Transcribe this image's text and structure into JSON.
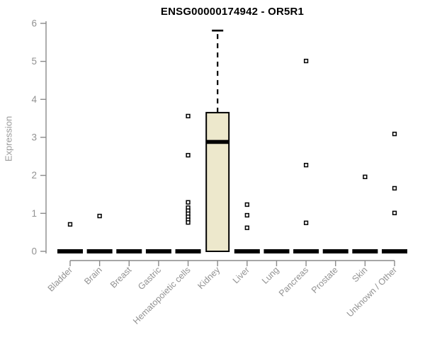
{
  "chart_data": {
    "type": "box",
    "title": "ENSG00000174942 - OR5R1",
    "ylabel": "Expression",
    "xlabel": "",
    "ylim": [
      0,
      6
    ],
    "yticks": [
      0,
      1,
      2,
      3,
      4,
      5,
      6
    ],
    "grid": false,
    "legend": "none",
    "categories": [
      "Bladder",
      "Brain",
      "Breast",
      "Gastric",
      "Hematopoietic cells",
      "Kidney",
      "Liver",
      "Lung",
      "Pancreas",
      "Prostate",
      "Skin",
      "Unknown / Other"
    ],
    "boxes": [
      {
        "category": "Bladder",
        "median": 0,
        "q1": 0,
        "q3": 0,
        "whisker_low": 0,
        "whisker_high": 0,
        "outliers": [
          0.71
        ]
      },
      {
        "category": "Brain",
        "median": 0,
        "q1": 0,
        "q3": 0,
        "whisker_low": 0,
        "whisker_high": 0,
        "outliers": [
          0.93
        ]
      },
      {
        "category": "Breast",
        "median": 0,
        "q1": 0,
        "q3": 0,
        "whisker_low": 0,
        "whisker_high": 0,
        "outliers": []
      },
      {
        "category": "Gastric",
        "median": 0,
        "q1": 0,
        "q3": 0,
        "whisker_low": 0,
        "whisker_high": 0,
        "outliers": []
      },
      {
        "category": "Hematopoietic cells",
        "median": 0,
        "q1": 0,
        "q3": 0,
        "whisker_low": 0,
        "whisker_high": 0,
        "outliers": [
          3.56,
          2.53,
          1.29,
          1.15,
          1.07,
          0.99,
          0.91,
          0.83,
          0.76
        ]
      },
      {
        "category": "Kidney",
        "median": 2.88,
        "q1": 0,
        "q3": 3.65,
        "whisker_low": 0,
        "whisker_high": 5.81,
        "outliers": []
      },
      {
        "category": "Liver",
        "median": 0,
        "q1": 0,
        "q3": 0,
        "whisker_low": 0,
        "whisker_high": 0,
        "outliers": [
          1.23,
          0.95,
          0.62
        ]
      },
      {
        "category": "Lung",
        "median": 0,
        "q1": 0,
        "q3": 0,
        "whisker_low": 0,
        "whisker_high": 0,
        "outliers": []
      },
      {
        "category": "Pancreas",
        "median": 0,
        "q1": 0,
        "q3": 0,
        "whisker_low": 0,
        "whisker_high": 0,
        "outliers": [
          5.01,
          2.27,
          0.75
        ]
      },
      {
        "category": "Prostate",
        "median": 0,
        "q1": 0,
        "q3": 0,
        "whisker_low": 0,
        "whisker_high": 0,
        "outliers": []
      },
      {
        "category": "Skin",
        "median": 0,
        "q1": 0,
        "q3": 0,
        "whisker_low": 0,
        "whisker_high": 0,
        "outliers": [
          1.96
        ]
      },
      {
        "category": "Unknown / Other",
        "median": 0,
        "q1": 0,
        "q3": 0,
        "whisker_low": 0,
        "whisker_high": 0,
        "outliers": [
          3.09,
          1.66,
          1.01
        ]
      }
    ],
    "colors": {
      "box_fill": "#EDE8CC",
      "box_stroke": "#000000",
      "median": "#000000",
      "zero_bar": "#000000",
      "outlier_fill": "#ffffff",
      "outlier_stroke": "#000000",
      "axis": "#8a8a8a",
      "tick_label": "#929292",
      "title": "#000000"
    }
  }
}
